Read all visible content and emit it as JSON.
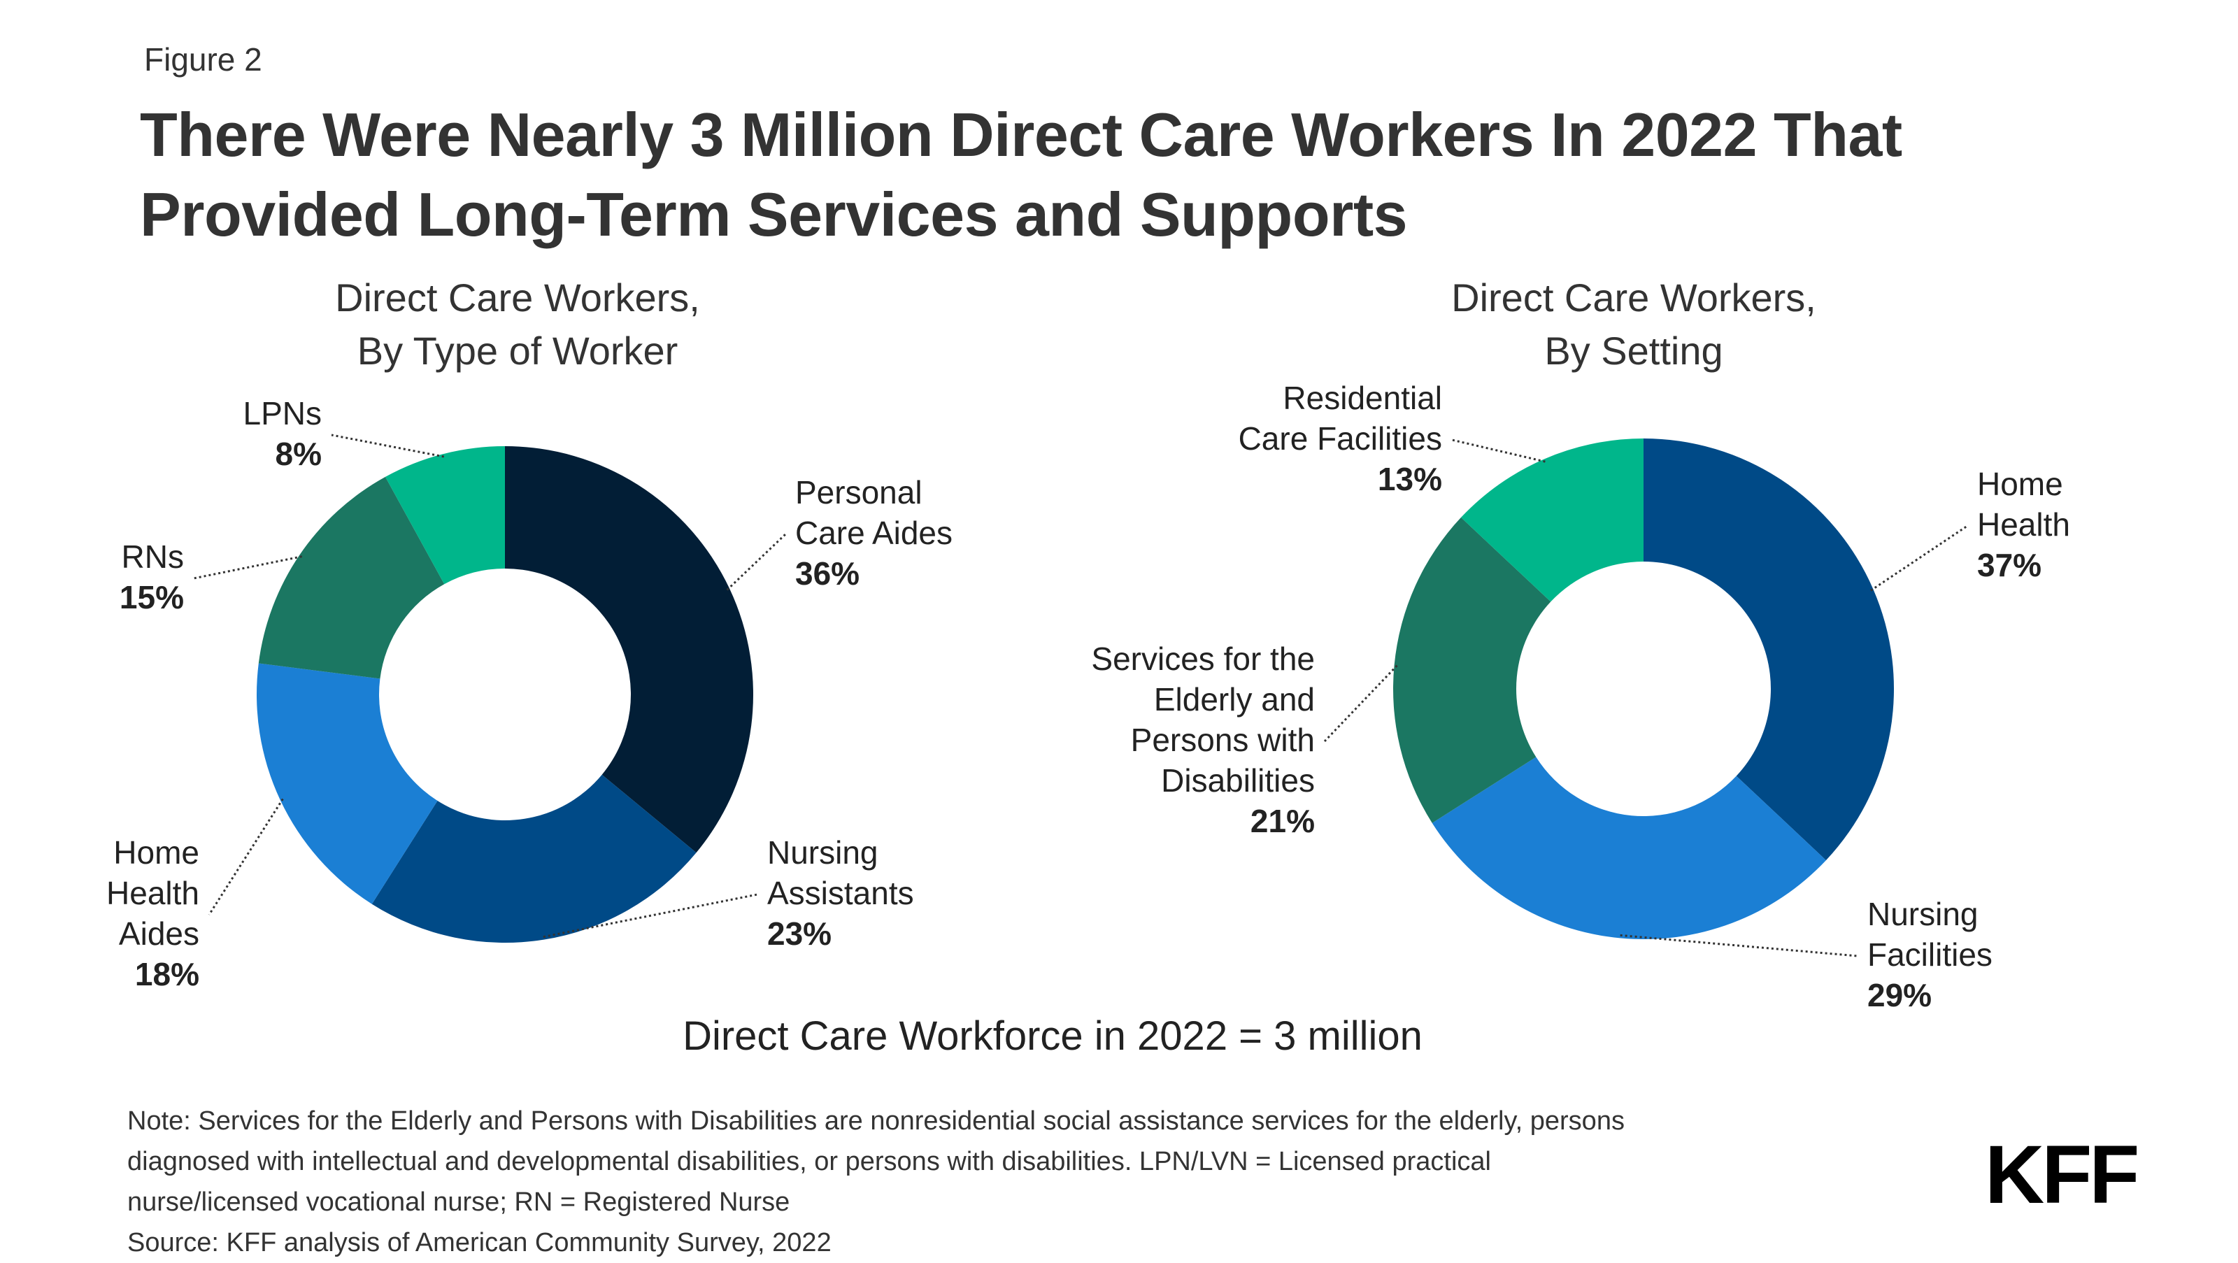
{
  "figure_label": "Figure 2",
  "title_lines": [
    "There Were Nearly 3 Million Direct Care Workers In 2022 That",
    "Provided Long-Term Services and Supports"
  ],
  "chart_data": [
    {
      "type": "pie",
      "donut": true,
      "title_lines": [
        "Direct Care Workers,",
        "By Type of Worker"
      ],
      "labels": [
        "Personal Care Aides",
        "Nursing Assistants",
        "Home Health Aides",
        "RNs",
        "LPNs"
      ],
      "label_lines": [
        [
          "Personal",
          "Care Aides"
        ],
        [
          "Nursing",
          "Assistants"
        ],
        [
          "Home",
          "Health",
          "Aides"
        ],
        [
          "RNs"
        ],
        [
          "LPNs"
        ]
      ],
      "values": [
        36,
        23,
        18,
        15,
        8
      ],
      "value_labels": [
        "36%",
        "23%",
        "18%",
        "15%",
        "8%"
      ],
      "colors": [
        "#021e36",
        "#004a87",
        "#1b7fd4",
        "#1b7762",
        "#00b68b"
      ]
    },
    {
      "type": "pie",
      "donut": true,
      "title_lines": [
        "Direct Care Workers,",
        "By Setting"
      ],
      "labels": [
        "Home Health",
        "Nursing Facilities",
        "Services for the Elderly and Persons with Disabilities",
        "Residential Care Facilities"
      ],
      "label_lines": [
        [
          "Home",
          "Health"
        ],
        [
          "Nursing",
          "Facilities"
        ],
        [
          "Services for the",
          "Elderly and",
          "Persons with",
          "Disabilities"
        ],
        [
          "Residential",
          "Care Facilities"
        ]
      ],
      "values": [
        37,
        29,
        21,
        13
      ],
      "value_labels": [
        "37%",
        "29%",
        "21%",
        "13%"
      ],
      "colors": [
        "#004a87",
        "#1b7fd4",
        "#1b7762",
        "#00b68b"
      ]
    }
  ],
  "total_text": "Direct Care Workforce in 2022 = 3 million",
  "note_lines": [
    "Note: Services for the Elderly and Persons with Disabilities are nonresidential social assistance services for the elderly, persons",
    "diagnosed with intellectual and developmental disabilities, or persons with disabilities. LPN/LVN = Licensed practical",
    "nurse/licensed vocational nurse; RN = Registered Nurse",
    "Source: KFF analysis of American Community Survey, 2022"
  ],
  "logo_text": "KFF"
}
